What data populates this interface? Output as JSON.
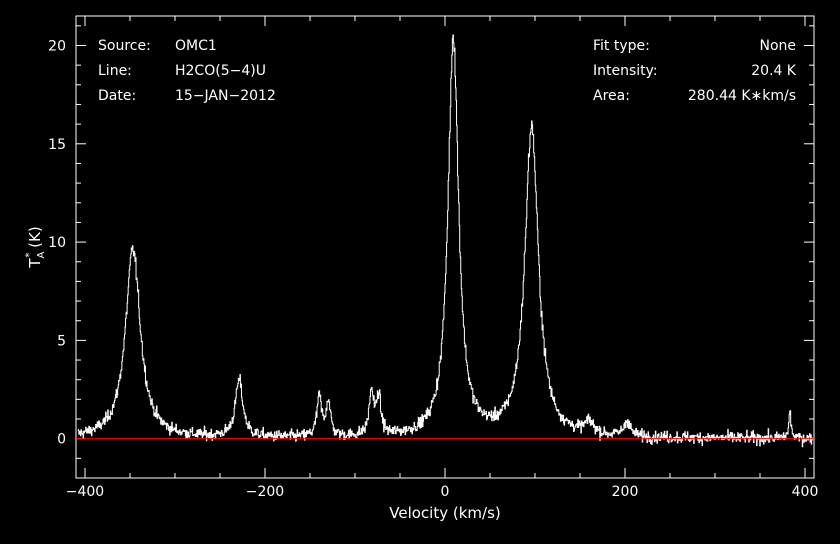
{
  "chart_data": {
    "type": "line",
    "xlabel": "Velocity (km/s)",
    "ylabel": "T_A* (K)",
    "xlim": [
      -410,
      410
    ],
    "ylim": [
      -2.0,
      21.5
    ],
    "xticks": [
      -400,
      -200,
      0,
      200,
      400
    ],
    "yticks": [
      0,
      5,
      10,
      15,
      20
    ],
    "grid": false,
    "background": "#000000",
    "colors": {
      "axes": "#ffffff",
      "spectrum": "#ffffff",
      "baseline": "#ff0000"
    },
    "annotations_left": [
      {
        "key": "Source:",
        "value": "OMC1"
      },
      {
        "key": "Line:",
        "value": "H2CO(5−4)U"
      },
      {
        "key": "Date:",
        "value": "15−JAN−2012"
      }
    ],
    "annotations_right": [
      {
        "key": "Fit type:",
        "value": "None"
      },
      {
        "key": "Intensity:",
        "value": "20.4 K"
      },
      {
        "key": "Area:",
        "value": "280.44 K∗km/s"
      }
    ],
    "baseline_y": 0,
    "noise_rms": 0.3,
    "series": [
      {
        "style": "steps",
        "x_range": [
          -408,
          408
        ],
        "peaks": [
          {
            "x": -347,
            "y": 9.6,
            "width": 10
          },
          {
            "x": -229,
            "y": 2.9,
            "width": 5
          },
          {
            "x": -140,
            "y": 2.0,
            "width": 3
          },
          {
            "x": -130,
            "y": 1.8,
            "width": 3
          },
          {
            "x": -82,
            "y": 2.2,
            "width": 3
          },
          {
            "x": -74,
            "y": 1.9,
            "width": 3
          },
          {
            "x": 9,
            "y": 20.4,
            "width": 7
          },
          {
            "x": 96,
            "y": 15.8,
            "width": 9
          },
          {
            "x": 160,
            "y": 0.6,
            "width": 6
          },
          {
            "x": 202,
            "y": 0.8,
            "width": 4
          },
          {
            "x": 383,
            "y": 1.3,
            "width": 1.5
          }
        ]
      }
    ]
  }
}
